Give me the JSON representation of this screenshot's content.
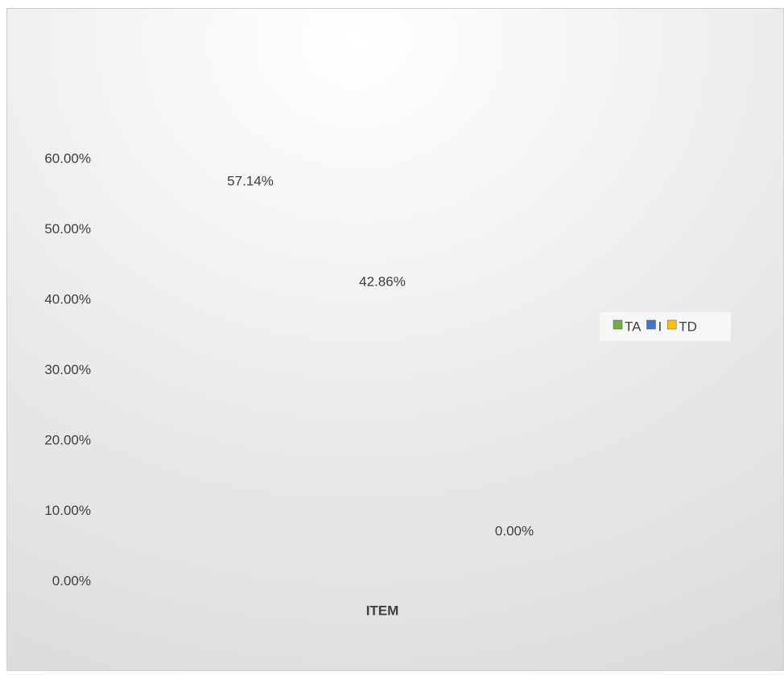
{
  "chart_data": {
    "type": "bar",
    "categories": [
      "ITEM"
    ],
    "series": [
      {
        "name": "TA",
        "color": "#70ad47",
        "values": [
          57.14
        ],
        "value_labels": [
          "57.14%"
        ]
      },
      {
        "name": "I",
        "color": "#4472c4",
        "values": [
          42.86
        ],
        "value_labels": [
          "42.86%"
        ]
      },
      {
        "name": "TD",
        "color": "#ffc000",
        "values": [
          0
        ],
        "value_labels": [
          "0.00%"
        ]
      }
    ],
    "ylim": [
      0,
      60
    ],
    "yticks": [
      {
        "value": 0,
        "label": "0.00%"
      },
      {
        "value": 10,
        "label": "10.00%"
      },
      {
        "value": 20,
        "label": "20.00%"
      },
      {
        "value": 30,
        "label": "30.00%"
      },
      {
        "value": 40,
        "label": "40.00%"
      },
      {
        "value": 50,
        "label": "50.00%"
      },
      {
        "value": 60,
        "label": "60.00%"
      }
    ],
    "grid": false,
    "legend": "right"
  }
}
